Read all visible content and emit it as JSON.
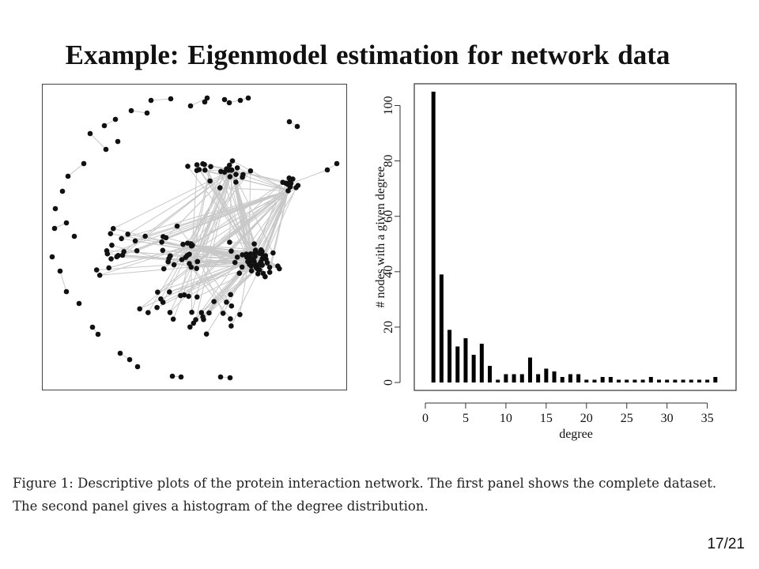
{
  "slide": {
    "title": "Example: Eigenmodel estimation for network data",
    "page_number": "17/21"
  },
  "caption": {
    "text": "Figure 1: Descriptive plots of the protein interaction network. The first panel shows the complete dataset. The second panel gives a histogram of the degree distribution."
  },
  "network": {
    "node_color": "#111111",
    "edge_color": "#c8c8c8"
  },
  "chart_data": {
    "type": "bar",
    "xlabel": "degree",
    "ylabel": "# nodes with a given degree",
    "xlim": [
      0,
      37
    ],
    "ylim": [
      0,
      105
    ],
    "x_ticks": [
      0,
      5,
      10,
      15,
      20,
      25,
      30,
      35
    ],
    "y_ticks": [
      0,
      20,
      40,
      60,
      80,
      100
    ],
    "bar_color": "#000000",
    "categories": [
      1,
      2,
      3,
      4,
      5,
      6,
      7,
      8,
      9,
      10,
      11,
      12,
      13,
      14,
      15,
      16,
      17,
      18,
      19,
      20,
      21,
      22,
      23,
      24,
      25,
      26,
      27,
      28,
      29,
      30,
      31,
      32,
      33,
      34,
      35,
      36
    ],
    "values": [
      105,
      39,
      19,
      13,
      16,
      10,
      14,
      6,
      1,
      3,
      3,
      3,
      9,
      3,
      5,
      4,
      2,
      3,
      3,
      1,
      1,
      2,
      2,
      1,
      1,
      1,
      1,
      2,
      1,
      1,
      1,
      1,
      1,
      1,
      1,
      2
    ]
  }
}
